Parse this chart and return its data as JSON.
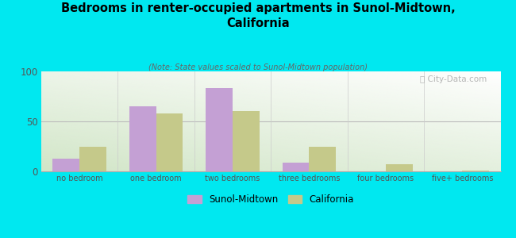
{
  "title": "Bedrooms in renter-occupied apartments in Sunol-Midtown,\nCalifornia",
  "subtitle": "(Note: State values scaled to Sunol-Midtown population)",
  "categories": [
    "no bedroom",
    "one bedroom",
    "two bedrooms",
    "three bedrooms",
    "four bedrooms",
    "five+ bedrooms"
  ],
  "sunol_values": [
    13,
    65,
    83,
    9,
    0,
    0
  ],
  "california_values": [
    25,
    58,
    60,
    25,
    7,
    1
  ],
  "sunol_color": "#c4a0d4",
  "california_color": "#c5c98a",
  "background_outer": "#00e8f0",
  "ylim": [
    0,
    100
  ],
  "yticks": [
    0,
    50,
    100
  ],
  "bar_width": 0.35,
  "watermark": "ⓘ City-Data.com"
}
